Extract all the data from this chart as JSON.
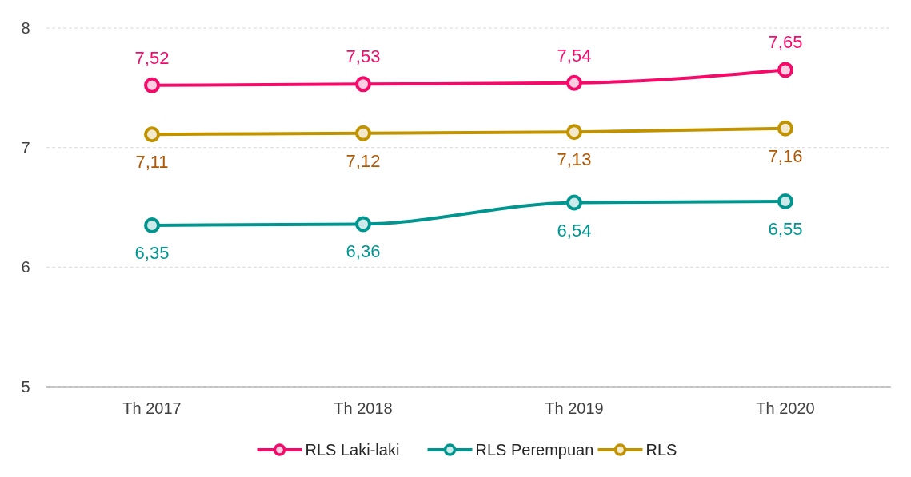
{
  "chart_data": {
    "type": "line",
    "categories": [
      "Th 2017",
      "Th 2018",
      "Th 2019",
      "Th 2020"
    ],
    "ylim": [
      5,
      8
    ],
    "yticks": [
      5,
      6,
      7,
      8
    ],
    "grid": "y",
    "legend": "bottom",
    "marker": "circle",
    "line_style": "solid",
    "series": [
      {
        "name": "RLS Laki-laki",
        "color": "#f50a6a",
        "values": [
          7.52,
          7.53,
          7.54,
          7.65
        ],
        "value_labels": [
          "7,52",
          "7,53",
          "7,54",
          "7,65"
        ]
      },
      {
        "name": "RLS Perempuan",
        "color": "#00968f",
        "values": [
          6.35,
          6.36,
          6.54,
          6.55
        ],
        "value_labels": [
          "6,35",
          "6,36",
          "6,54",
          "6,55"
        ]
      },
      {
        "name": "RLS",
        "color": "#c29300",
        "values": [
          7.11,
          7.12,
          7.13,
          7.16
        ],
        "value_labels": [
          "7,11",
          "7,12",
          "7,13",
          "7,16"
        ]
      }
    ]
  }
}
